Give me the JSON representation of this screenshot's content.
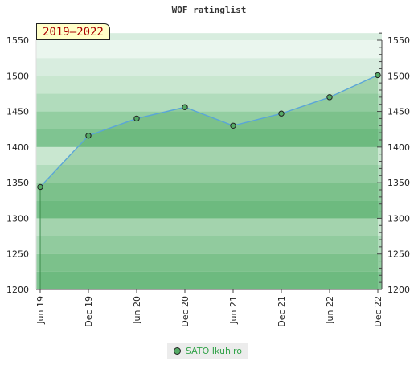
{
  "chart_data": {
    "type": "area",
    "title": "WOF ratinglist",
    "badge": "2019–2022",
    "x_categories": [
      "Jun 19",
      "Dec 19",
      "Jun 20",
      "Dec 20",
      "Jun 21",
      "Dec 21",
      "Jun 22",
      "Dec 22"
    ],
    "y_ticks": [
      1200,
      1250,
      1300,
      1350,
      1400,
      1450,
      1500,
      1550
    ],
    "ylim": [
      1200,
      1560
    ],
    "series": [
      {
        "name": "SATO Ikuhiro",
        "values": [
          1344,
          1416,
          1440,
          1456,
          1430,
          1447,
          1470,
          1501
        ]
      }
    ],
    "grid": "horizontal bands",
    "legend_position": "bottom",
    "colors": {
      "line": "#5aa5d8",
      "fill": "#3fa352",
      "marker": "#55aa66",
      "legend_text": "#33a34a",
      "badge_text": "#aa0000"
    }
  }
}
